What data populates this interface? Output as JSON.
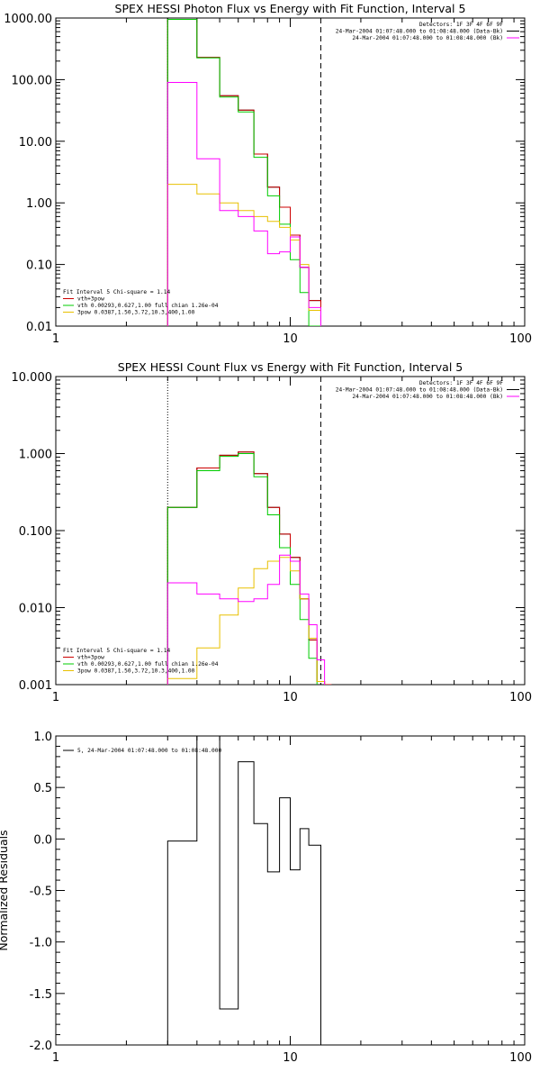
{
  "chart_data": [
    {
      "type": "line",
      "title": "SPEX HESSI Photon Flux vs Energy with Fit Function, Interval 5",
      "xscale": "log",
      "yscale": "log",
      "xlim": [
        1,
        100
      ],
      "ylim": [
        0.01,
        1000
      ],
      "x_ticks": [
        1,
        10,
        100
      ],
      "x_tick_labels": [
        "1",
        "10",
        "100"
      ],
      "y_ticks": [
        0.01,
        0.1,
        1,
        10,
        100,
        1000
      ],
      "y_tick_labels": [
        "0.01",
        "0.10",
        "1.00",
        "10.00",
        "100.00",
        "1000.00"
      ],
      "vlines": [
        {
          "x": 3.0,
          "style": "dotted",
          "color": "#000000"
        },
        {
          "x": 13.5,
          "style": "dashed",
          "color": "#000000"
        }
      ],
      "legend_right": {
        "position": "top-right",
        "lines": [
          {
            "text": "Detectors: 1F 3F 4F 6F 9F",
            "color": ""
          },
          {
            "text": "24-Mar-2004 01:07:48.000 to 01:08:48.000 (Data-Bk)",
            "color": "#000000"
          },
          {
            "text": "24-Mar-2004 01:07:48.000 to 01:08:48.000 (Bk)",
            "color": "#ff00ff"
          }
        ]
      },
      "legend_left": {
        "position": "bottom-left",
        "lines": [
          {
            "text": "Fit Interval 5   Chi-square = 1.14",
            "color": ""
          },
          {
            "text": "vth+3pow",
            "color": "#cc0000"
          },
          {
            "text": "vth 0.00293,0.627,1.00  full chian 1.26e-04",
            "color": "#00cc00"
          },
          {
            "text": "3pow 0.0387,1.50,3.72,10.3,400,1.00",
            "color": "#e8c000"
          }
        ]
      },
      "bin_edges": [
        3.0,
        4.0,
        5.0,
        6.0,
        7.0,
        8.0,
        9.0,
        10.0,
        11.0,
        12.0,
        13.5
      ],
      "series": [
        {
          "name": "",
          "color": "#000000",
          "values": [
            950,
            230,
            55,
            32,
            6.2,
            1.8,
            0.85,
            0.3,
            0.09,
            0.026
          ]
        },
        {
          "name": "vth+3pow",
          "color": "#cc0000",
          "values": [
            950,
            230,
            55,
            32,
            6.2,
            1.8,
            0.85,
            0.3,
            0.09,
            0.026
          ]
        },
        {
          "name": "vth",
          "color": "#00cc00",
          "values": [
            950,
            225,
            52,
            30,
            5.5,
            1.3,
            0.45,
            0.12,
            0.035,
            0.008
          ]
        },
        {
          "name": "3pow",
          "color": "#e8c000",
          "values": [
            2.0,
            1.4,
            1.0,
            0.75,
            0.6,
            0.5,
            0.4,
            0.25,
            0.1,
            0.018
          ]
        },
        {
          "name": "(Bk)",
          "color": "#ff00ff",
          "values": [
            90,
            5.2,
            0.75,
            0.6,
            0.35,
            0.15,
            0.16,
            0.28,
            0.09,
            0.02
          ]
        }
      ]
    },
    {
      "type": "line",
      "title": "SPEX HESSI Count Flux vs Energy with Fit Function, Interval 5",
      "xscale": "log",
      "yscale": "log",
      "xlim": [
        1,
        100
      ],
      "ylim": [
        0.001,
        10
      ],
      "x_ticks": [
        1,
        10,
        100
      ],
      "x_tick_labels": [
        "1",
        "10",
        "100"
      ],
      "y_ticks": [
        0.001,
        0.01,
        0.1,
        1,
        10
      ],
      "y_tick_labels": [
        "0.001",
        "0.010",
        "0.100",
        "1.000",
        "10.000"
      ],
      "vlines": [
        {
          "x": 3.0,
          "style": "dotted",
          "color": "#000000"
        },
        {
          "x": 13.5,
          "style": "dashed",
          "color": "#000000"
        }
      ],
      "legend_right": {
        "position": "top-right",
        "lines": [
          {
            "text": "Detectors: 1F 3F 4F 6F 9F",
            "color": ""
          },
          {
            "text": "24-Mar-2004 01:07:48.000 to 01:08:48.000 (Data-Bk)",
            "color": "#000000"
          },
          {
            "text": "24-Mar-2004 01:07:48.000 to 01:08:48.000 (Bk)",
            "color": "#ff00ff"
          }
        ]
      },
      "legend_left": {
        "position": "bottom-left",
        "lines": [
          {
            "text": "Fit Interval 5   Chi-square = 1.14",
            "color": ""
          },
          {
            "text": "vth+3pow",
            "color": "#cc0000"
          },
          {
            "text": "vth 0.00293,0.627,1.00  full chian 1.26e-04",
            "color": "#00cc00"
          },
          {
            "text": "3pow 0.0387,1.50,3.72,10.3,400,1.00",
            "color": "#e8c000"
          }
        ]
      },
      "bin_edges": [
        3.0,
        4.0,
        5.0,
        6.0,
        7.0,
        8.0,
        9.0,
        10.0,
        11.0,
        12.0,
        13.0,
        14.0,
        15.0
      ],
      "series": [
        {
          "name": "",
          "color": "#000000",
          "values": [
            0.2,
            0.65,
            0.95,
            1.05,
            0.55,
            0.2,
            0.09,
            0.045,
            0.013,
            0.0038,
            0.0011,
            null
          ]
        },
        {
          "name": "vth+3pow",
          "color": "#cc0000",
          "values": [
            0.2,
            0.65,
            0.95,
            1.05,
            0.55,
            0.2,
            0.09,
            0.045,
            0.013,
            0.0038,
            0.0011,
            0.001
          ]
        },
        {
          "name": "vth",
          "color": "#00cc00",
          "values": [
            0.2,
            0.6,
            0.92,
            1.0,
            0.5,
            0.16,
            0.06,
            0.02,
            0.007,
            0.0022,
            null,
            null
          ]
        },
        {
          "name": "3pow",
          "color": "#e8c000",
          "values": [
            0.0012,
            0.003,
            0.008,
            0.018,
            0.032,
            0.04,
            0.045,
            0.03,
            0.013,
            0.004,
            0.0011,
            null
          ]
        },
        {
          "name": "(Bk)",
          "color": "#ff00ff",
          "values": [
            0.021,
            0.015,
            0.013,
            0.012,
            0.013,
            0.02,
            0.048,
            0.04,
            0.015,
            0.006,
            0.0021,
            null
          ]
        }
      ]
    },
    {
      "type": "line",
      "title": "",
      "xscale": "log",
      "yscale": "linear",
      "xlim": [
        1,
        100
      ],
      "ylim": [
        -2.0,
        1.0
      ],
      "ylabel": "Normalized Residuals",
      "x_ticks": [
        1,
        10,
        100
      ],
      "x_tick_labels": [
        "1",
        "10",
        "100"
      ],
      "y_ticks": [
        -2.0,
        -1.5,
        -1.0,
        -0.5,
        0.0,
        0.5,
        1.0
      ],
      "y_tick_labels": [
        "-2.0",
        "-1.5",
        "-1.0",
        "-0.5",
        "0.0",
        "0.5",
        "1.0"
      ],
      "legend_left": {
        "position": "top-left",
        "lines": [
          {
            "text": "5, 24-Mar-2004 01:07:48.000 to 01:08:48.000",
            "color": "#000000"
          }
        ]
      },
      "bin_edges": [
        3.0,
        4.0,
        5.0,
        6.0,
        7.0,
        8.0,
        9.0,
        10.0,
        11.0,
        12.0,
        13.5
      ],
      "series": [
        {
          "name": "5, 24-Mar-2004 01:07:48.000 to 01:08:48.000",
          "color": "#000000",
          "values": [
            -0.02,
            1.0,
            -1.65,
            0.75,
            0.15,
            -0.32,
            0.4,
            -0.3,
            0.1,
            -0.06
          ]
        }
      ]
    }
  ]
}
